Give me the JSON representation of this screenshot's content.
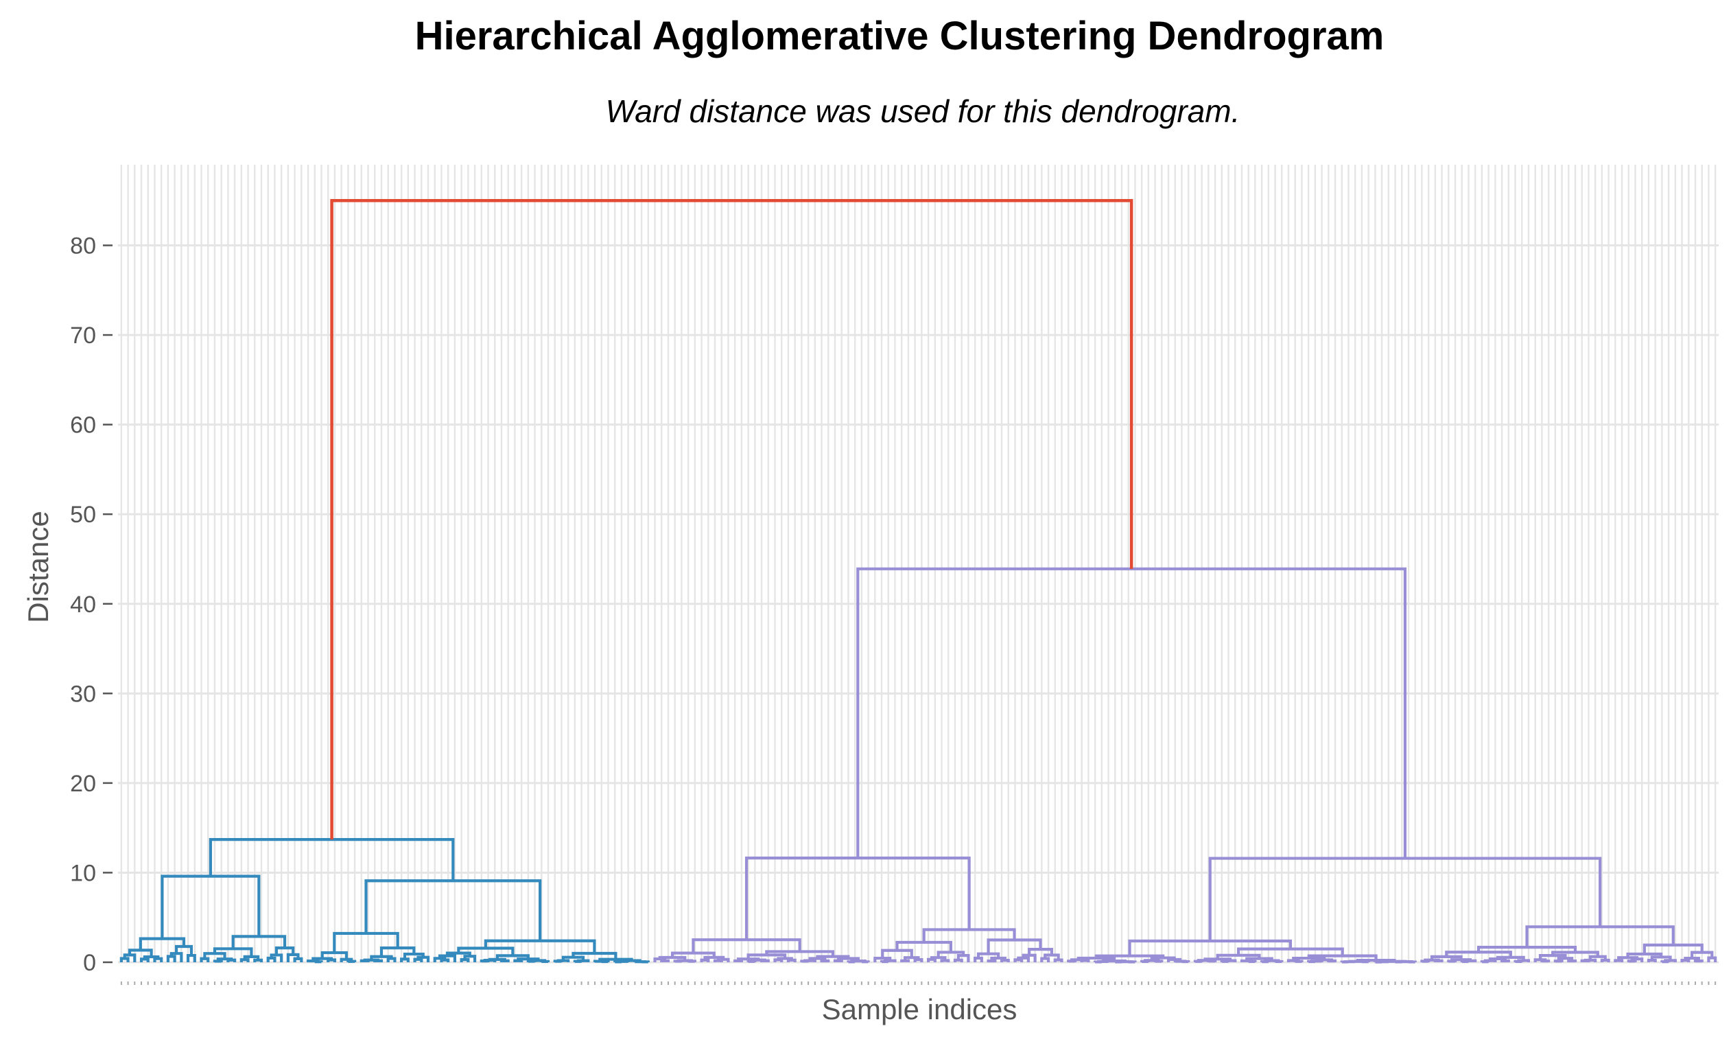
{
  "chart_data": {
    "type": "dendrogram",
    "title": "Hierarchical Agglomerative Clustering Dendrogram",
    "subtitle": "Ward distance was used for this dendrogram.",
    "xlabel": "Sample indices",
    "ylabel": "Distance",
    "ylim": [
      0,
      89
    ],
    "yticks": [
      0,
      10,
      20,
      30,
      40,
      50,
      60,
      70,
      80
    ],
    "grid": true,
    "colors": {
      "root": "#E24A33",
      "cluster_1": "#348ABD",
      "cluster_2": "#988ED5",
      "grid": "#E5E5E5",
      "background": "#FFFFFF"
    },
    "n_samples": 240,
    "clusters": [
      {
        "name": "cluster_1",
        "color": "#348ABD",
        "n_leaves": 80,
        "merge_height": 13.7
      },
      {
        "name": "cluster_2",
        "color": "#988ED5",
        "n_leaves": 160,
        "merge_height": 43.9
      }
    ],
    "merges": [
      {
        "left": "cluster_1",
        "right": "cluster_2",
        "height": 85.0,
        "color": "#E24A33"
      },
      {
        "cluster": "cluster_2",
        "left_subcluster_height": 11.3,
        "right_subcluster_height": 13.6,
        "height": 43.9
      },
      {
        "cluster": "cluster_1",
        "left_subcluster_height": 6.9,
        "right_subcluster_height": 9.6,
        "height": 13.7
      }
    ]
  }
}
